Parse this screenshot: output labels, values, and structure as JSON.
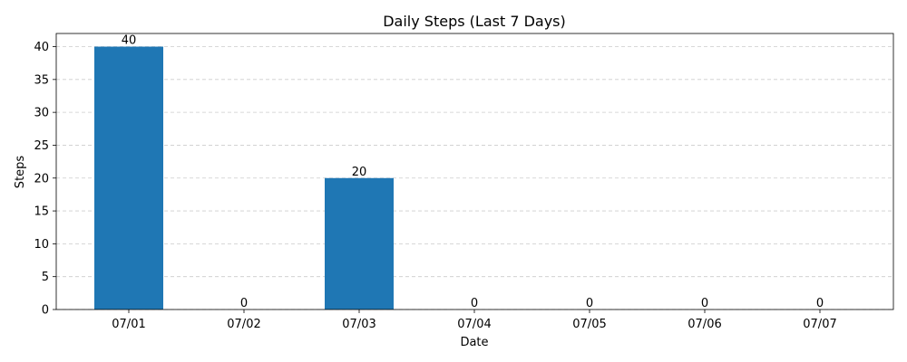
{
  "chart_data": {
    "type": "bar",
    "title": "Daily Steps (Last 7 Days)",
    "xlabel": "Date",
    "ylabel": "Steps",
    "categories": [
      "07/01",
      "07/02",
      "07/03",
      "07/04",
      "07/05",
      "07/06",
      "07/07"
    ],
    "values": [
      40,
      0,
      20,
      0,
      0,
      0,
      0
    ],
    "data_labels": [
      "40",
      "0",
      "20",
      "0",
      "0",
      "0",
      "0"
    ],
    "ylim": [
      0,
      42
    ],
    "yticks": [
      0,
      5,
      10,
      15,
      20,
      25,
      30,
      35,
      40
    ],
    "grid": true,
    "grid_axis": "y",
    "grid_style": "dashed",
    "colors": {
      "bar": "#1f77b4",
      "grid": "#cccccc",
      "axis": "#000000"
    }
  }
}
